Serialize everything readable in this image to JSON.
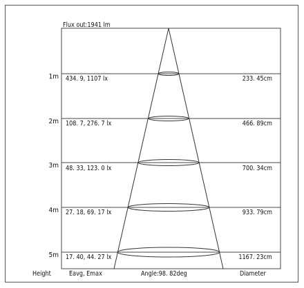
{
  "flux_label": "Flux out:1941 lm",
  "rows": [
    {
      "height": "1m",
      "lux": "434. 9, 1107 lx",
      "diameter": "233. 45cm"
    },
    {
      "height": "2m",
      "lux": "108. 7, 276. 7 lx",
      "diameter": "466. 89cm"
    },
    {
      "height": "3m",
      "lux": "48. 33, 123. 0 lx",
      "diameter": "700. 34cm"
    },
    {
      "height": "4m",
      "lux": "27. 18, 69. 17 lx",
      "diameter": "933. 79cm"
    },
    {
      "height": "5m",
      "lux": "17. 40, 44. 27 lx",
      "diameter": "1167. 23cm"
    }
  ],
  "footer": {
    "height_label": "Height",
    "lux_label": "Eavg, Emax",
    "angle_label": "Angle:98. 82deg",
    "diameter_label": "Diameter"
  }
}
